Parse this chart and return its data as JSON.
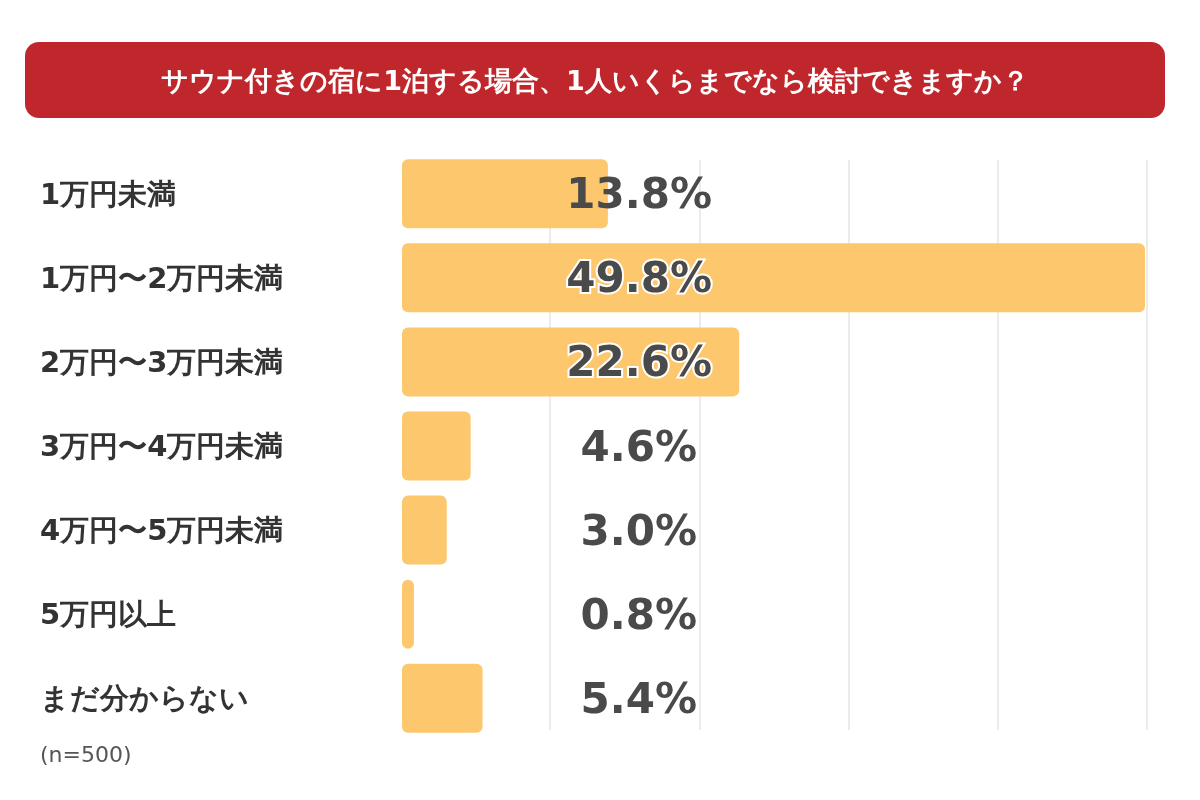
{
  "chart_data": {
    "type": "bar",
    "orientation": "horizontal",
    "title": "サウナ付きの宿に1泊する場合、1人いくらまでなら検討できますか？",
    "categories": [
      "1万円未満",
      "1万円〜2万円未満",
      "2万円〜3万円未満",
      "3万円〜4万円未満",
      "4万円〜5万円未満",
      "5万円以上",
      "まだ分からない"
    ],
    "values": [
      13.8,
      49.8,
      22.6,
      4.6,
      3.0,
      0.8,
      5.4
    ],
    "value_labels": [
      "13.8%",
      "49.8%",
      "22.6%",
      "4.6%",
      "3.0%",
      "0.8%",
      "5.4%"
    ],
    "color": "#fdc76e",
    "grid": "x",
    "tick_labels": "y",
    "annotations": [
      "(n=500)"
    ]
  }
}
